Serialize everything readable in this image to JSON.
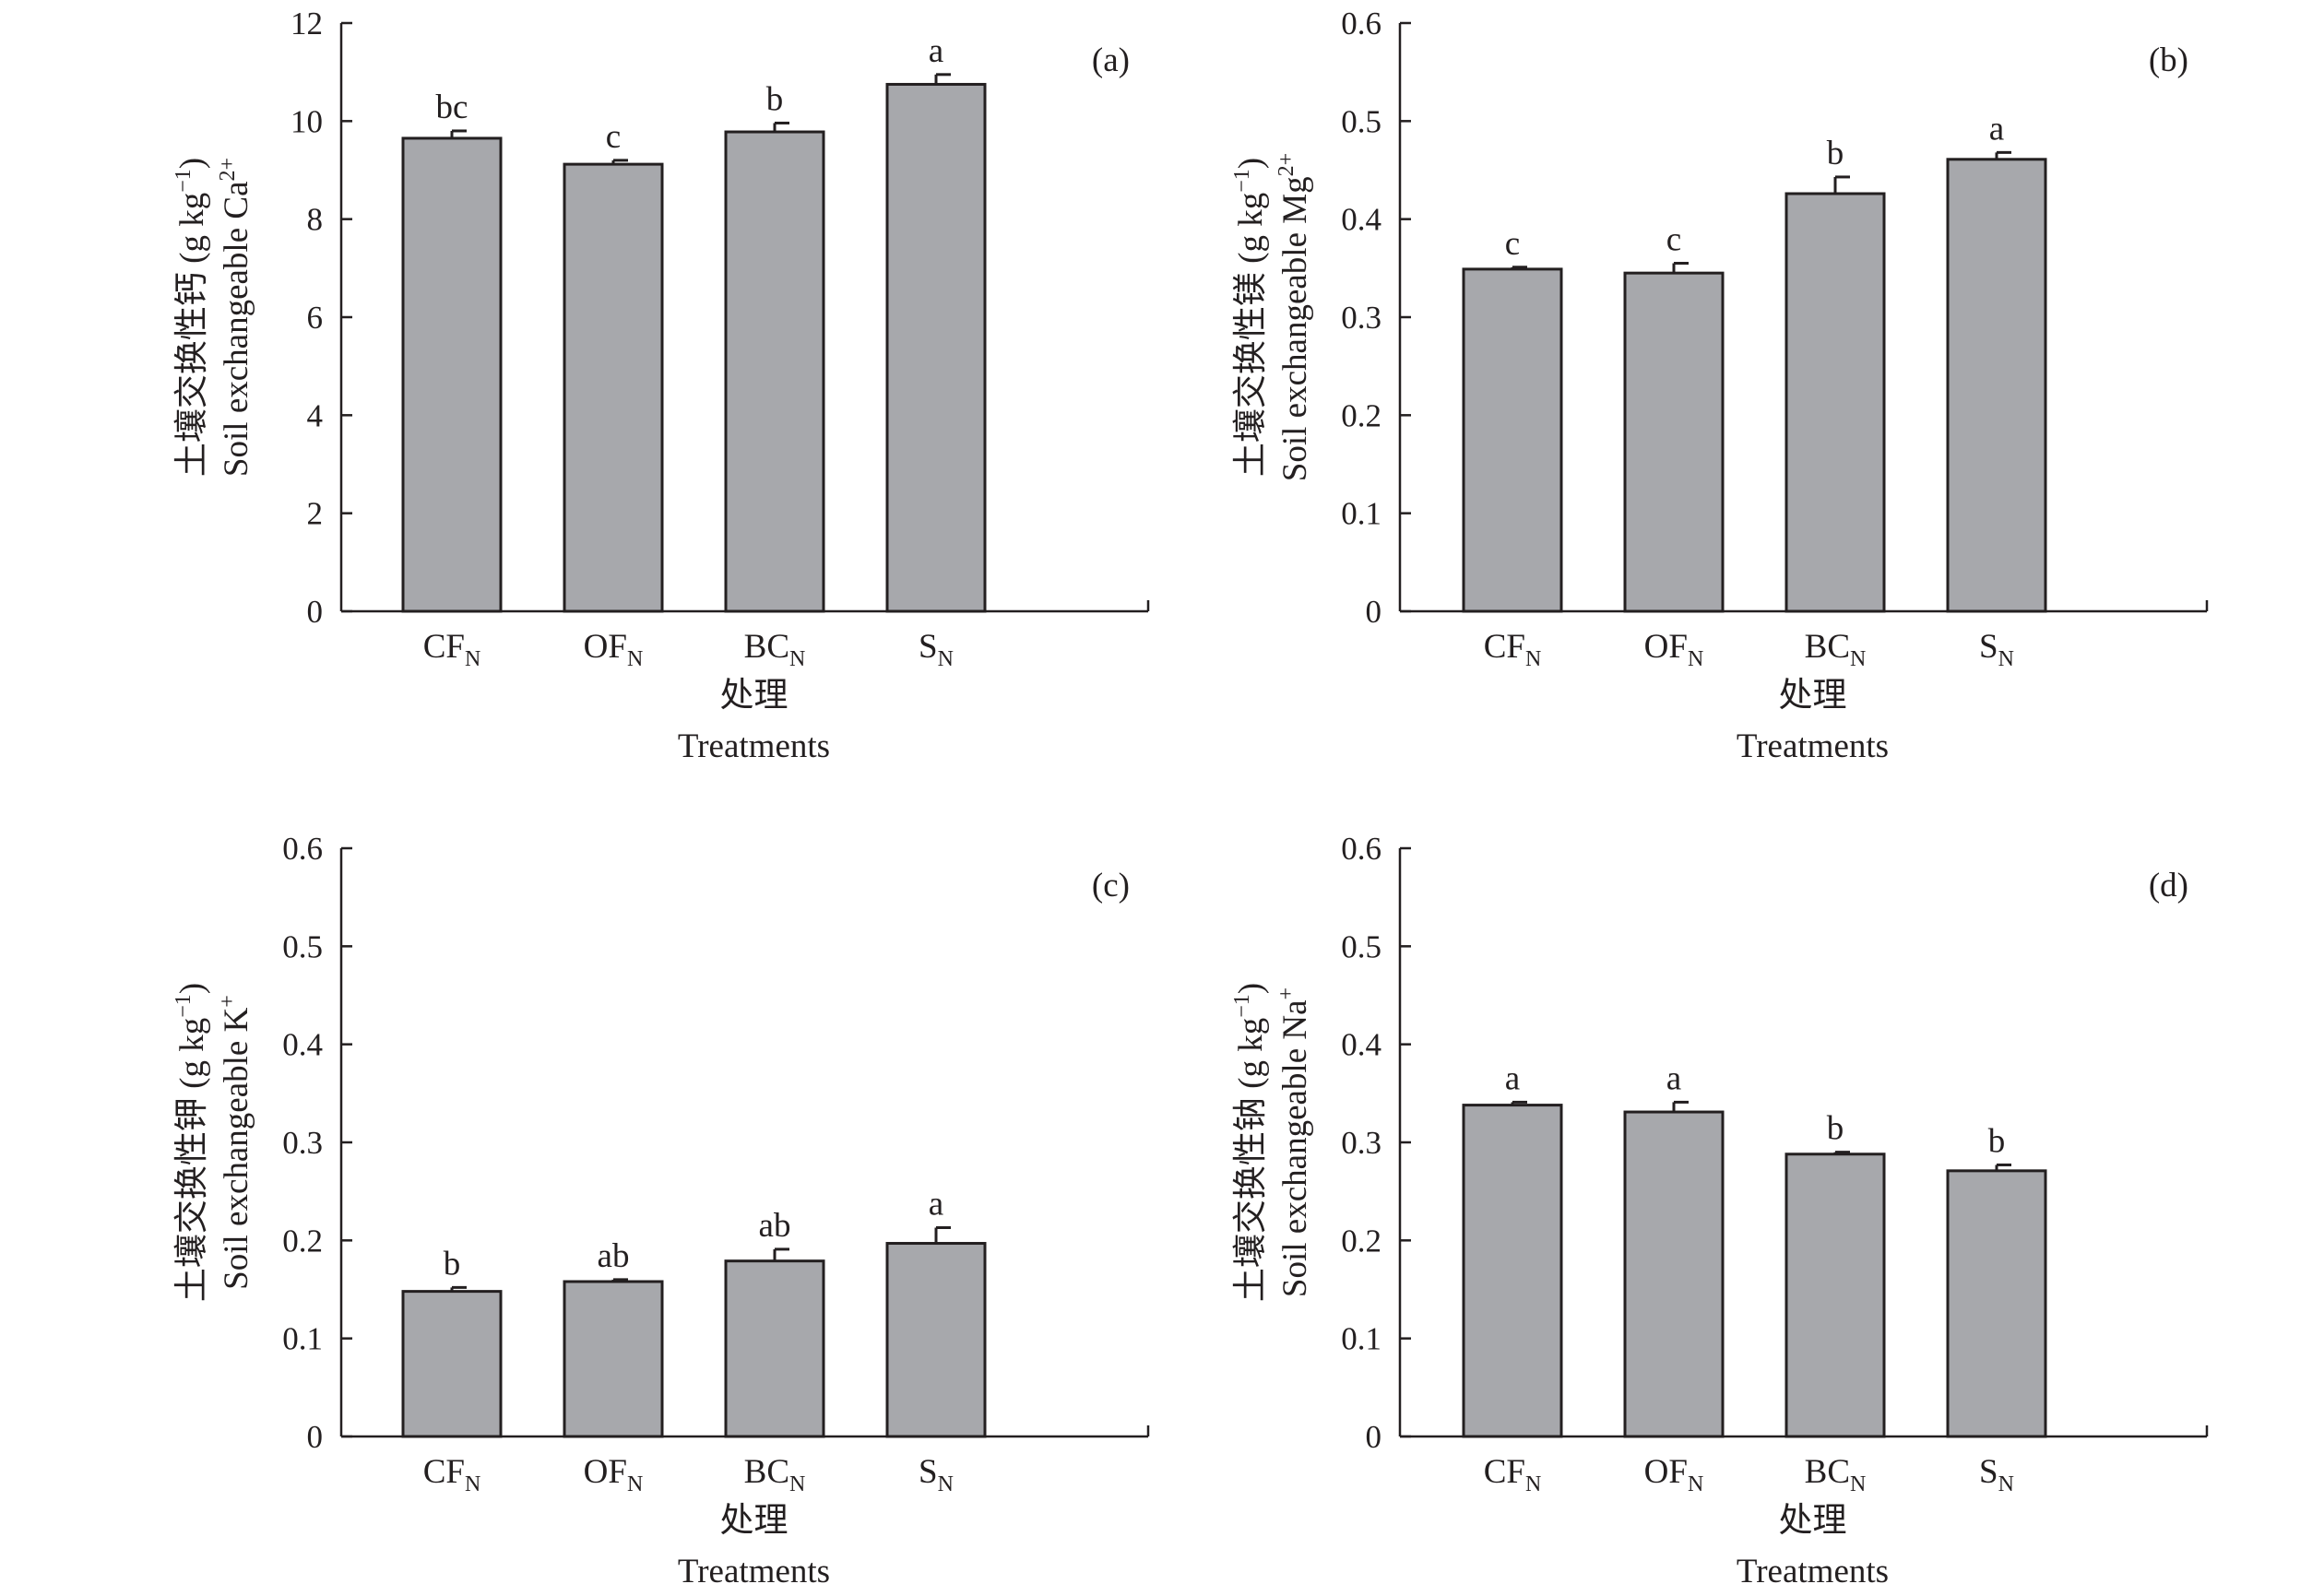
{
  "chart_data": [
    {
      "type": "bar",
      "panel_label": "(a)",
      "categories": [
        "CF",
        "OF",
        "BC",
        "S"
      ],
      "category_subscript": "N",
      "values": [
        9.65,
        9.12,
        9.78,
        10.75
      ],
      "errors": [
        0.15,
        0.08,
        0.18,
        0.2
      ],
      "significance": [
        "bc",
        "c",
        "b",
        "a"
      ],
      "ylim": [
        0,
        12
      ],
      "yticks": [
        "0",
        "2",
        "4",
        "6",
        "8",
        "10",
        "12"
      ],
      "ylabel_zh": "土壤交换性钙 (g kg",
      "ylabel_zh_sup": "−1",
      "ylabel_zh_tail": ")",
      "ylabel_en": "Soil exchangeable Ca",
      "ylabel_en_sup": "2+",
      "xlabel_zh": "处理",
      "xlabel_en": "Treatments"
    },
    {
      "type": "bar",
      "panel_label": "(b)",
      "categories": [
        "CF",
        "OF",
        "BC",
        "S"
      ],
      "category_subscript": "N",
      "values": [
        0.349,
        0.345,
        0.426,
        0.461
      ],
      "errors": [
        0.002,
        0.01,
        0.017,
        0.007
      ],
      "significance": [
        "c",
        "c",
        "b",
        "a"
      ],
      "ylim": [
        0,
        0.6
      ],
      "yticks": [
        "0",
        "0.1",
        "0.2",
        "0.3",
        "0.4",
        "0.5",
        "0.6"
      ],
      "ylabel_zh": "土壤交换性镁 (g kg",
      "ylabel_zh_sup": "−1",
      "ylabel_zh_tail": ")",
      "ylabel_en": "Soil exchangeable Mg",
      "ylabel_en_sup": "2+",
      "xlabel_zh": "处理",
      "xlabel_en": "Treatments"
    },
    {
      "type": "bar",
      "panel_label": "(c)",
      "categories": [
        "CF",
        "OF",
        "BC",
        "S"
      ],
      "category_subscript": "N",
      "values": [
        0.148,
        0.158,
        0.179,
        0.197
      ],
      "errors": [
        0.004,
        0.002,
        0.012,
        0.016
      ],
      "significance": [
        "b",
        "ab",
        "ab",
        "a"
      ],
      "ylim": [
        0,
        0.6
      ],
      "yticks": [
        "0",
        "0.1",
        "0.2",
        "0.3",
        "0.4",
        "0.5",
        "0.6"
      ],
      "ylabel_zh": "土壤交换性钾 (g kg",
      "ylabel_zh_sup": "−1",
      "ylabel_zh_tail": ")",
      "ylabel_en": "Soil exchangeable K",
      "ylabel_en_sup": "+",
      "xlabel_zh": "处理",
      "xlabel_en": "Treatments"
    },
    {
      "type": "bar",
      "panel_label": "(d)",
      "categories": [
        "CF",
        "OF",
        "BC",
        "S"
      ],
      "category_subscript": "N",
      "values": [
        0.338,
        0.331,
        0.288,
        0.271
      ],
      "errors": [
        0.003,
        0.01,
        0.002,
        0.006
      ],
      "significance": [
        "a",
        "a",
        "b",
        "b"
      ],
      "ylim": [
        0,
        0.6
      ],
      "yticks": [
        "0",
        "0.1",
        "0.2",
        "0.3",
        "0.4",
        "0.5",
        "0.6"
      ],
      "ylabel_zh": "土壤交换性钠 (g kg",
      "ylabel_zh_sup": "−1",
      "ylabel_zh_tail": ")",
      "ylabel_en": "Soil exchangeable Na",
      "ylabel_en_sup": "+",
      "xlabel_zh": "处理",
      "xlabel_en": "Treatments"
    }
  ],
  "colors": {
    "bar_fill": "#a7a8ac",
    "ink": "#231f20",
    "background": "#ffffff"
  }
}
